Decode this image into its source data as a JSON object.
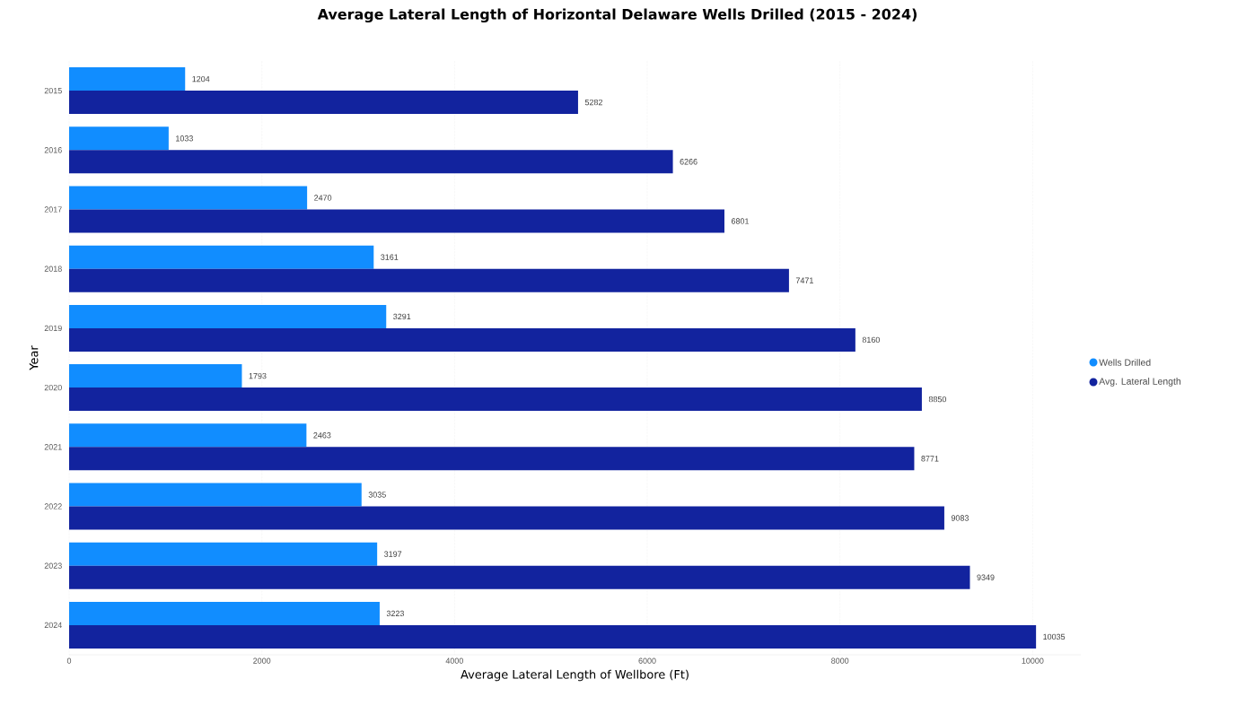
{
  "chart_data": {
    "type": "bar",
    "orientation": "horizontal",
    "title": "Average Lateral Length of Horizontal Delaware Wells Drilled (2015 - 2024)",
    "xlabel": "Average Lateral Length of Wellbore (Ft)",
    "ylabel": "Year",
    "categories": [
      "2015",
      "2016",
      "2017",
      "2018",
      "2019",
      "2020",
      "2021",
      "2022",
      "2023",
      "2024"
    ],
    "series": [
      {
        "name": "Wells Drilled",
        "color": "#118dff",
        "values": [
          1204,
          1033,
          2470,
          3161,
          3291,
          1793,
          2463,
          3035,
          3197,
          3223
        ]
      },
      {
        "name": "Avg. Lateral Length",
        "color": "#12239e",
        "values": [
          5282,
          6266,
          6801,
          7471,
          8160,
          8850,
          8771,
          9083,
          9349,
          10035
        ]
      }
    ],
    "xlim": [
      0,
      10500
    ],
    "xticks": [
      0,
      2000,
      4000,
      6000,
      8000,
      10000
    ],
    "grid": "x",
    "legend": "right",
    "data_labels": true
  }
}
